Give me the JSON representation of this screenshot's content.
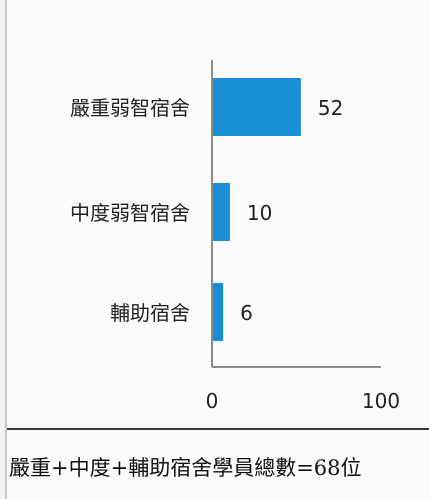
{
  "chart_data": {
    "type": "bar",
    "orientation": "horizontal",
    "categories": [
      "嚴重弱智宿舍",
      "中度弱智宿舍",
      "輔助宿舍"
    ],
    "values": [
      52,
      10,
      6
    ],
    "data_labels": [
      "52",
      "10",
      "6"
    ],
    "xlim": [
      0,
      100
    ],
    "x_tick_labels": [
      "0",
      "100"
    ],
    "grid": false,
    "legend": "none",
    "bar_color": "#1b8fd6"
  },
  "caption": "嚴重+中度+輔助宿舍學員總數=68位"
}
